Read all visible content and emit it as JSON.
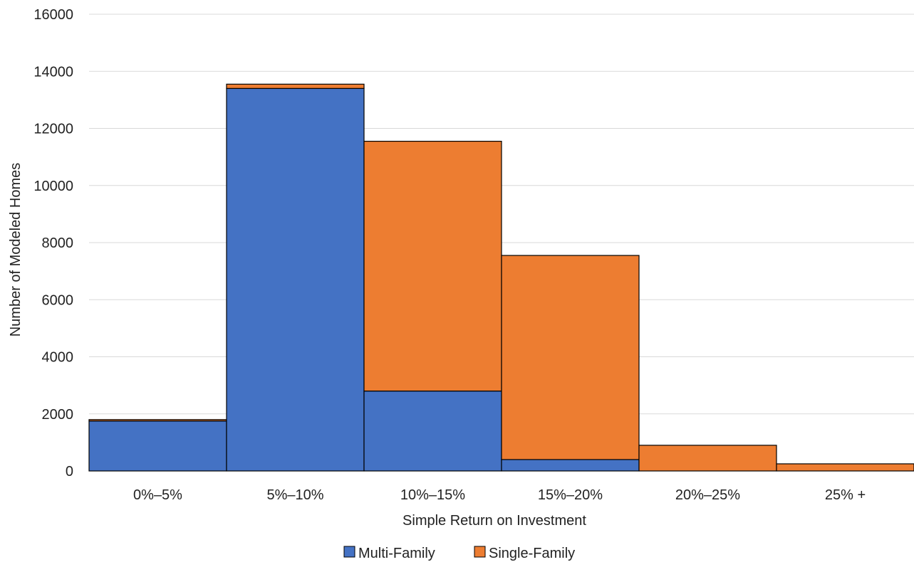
{
  "chart_data": {
    "type": "bar",
    "stacked": true,
    "title": "",
    "xlabel": "Simple Return on Investment",
    "ylabel": "Number of Modeled Homes",
    "categories": [
      "0%–5%",
      "5%–10%",
      "10%–15%",
      "15%–20%",
      "20%–25%",
      "25% +"
    ],
    "ylim": [
      0,
      16000
    ],
    "yticks": [
      0,
      2000,
      4000,
      6000,
      8000,
      10000,
      12000,
      14000,
      16000
    ],
    "grid": true,
    "legend_position": "bottom",
    "series": [
      {
        "name": "Multi-Family",
        "color": "#4472c4",
        "values": [
          1750,
          13400,
          2800,
          400,
          0,
          0
        ]
      },
      {
        "name": "Single-Family",
        "color": "#ed7d31",
        "values": [
          50,
          150,
          8750,
          7150,
          900,
          250
        ]
      }
    ]
  }
}
